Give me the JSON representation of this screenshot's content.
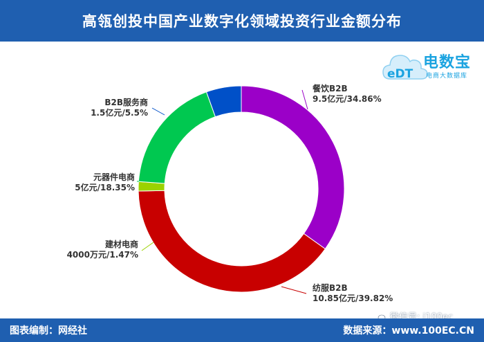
{
  "header": {
    "title": "高瓴创投中国产业数字化领域投资行业金额分布"
  },
  "footer": {
    "left": "图表编制：网经社",
    "right": "数据来源：www.100EC.CN"
  },
  "logo": {
    "brand": "电数宝",
    "sub": "电商大数据库"
  },
  "watermark": {
    "text": "微信号: i100ec"
  },
  "chart_data": {
    "type": "pie",
    "title": "高瓴创投中国产业数字化领域投资行业金额分布",
    "slices": [
      {
        "name": "餐饮B2B",
        "amount": "9.5亿元",
        "percent": 34.86,
        "label": "9.5亿元/34.86%",
        "color": "#9b00c8"
      },
      {
        "name": "纺服B2B",
        "amount": "10.85亿元",
        "percent": 39.82,
        "label": "10.85亿元/39.82%",
        "color": "#c80000"
      },
      {
        "name": "建材电商",
        "amount": "4000万元",
        "percent": 1.47,
        "label": "4000万元/1.47%",
        "color": "#9bd200"
      },
      {
        "name": "元器件电商",
        "amount": "5亿元",
        "percent": 18.35,
        "label": "5亿元/18.35%",
        "color": "#00c850"
      },
      {
        "name": "B2B服务商",
        "amount": "1.5亿元",
        "percent": 5.5,
        "label": "1.5亿元/5.5%",
        "color": "#0050c8"
      }
    ]
  }
}
